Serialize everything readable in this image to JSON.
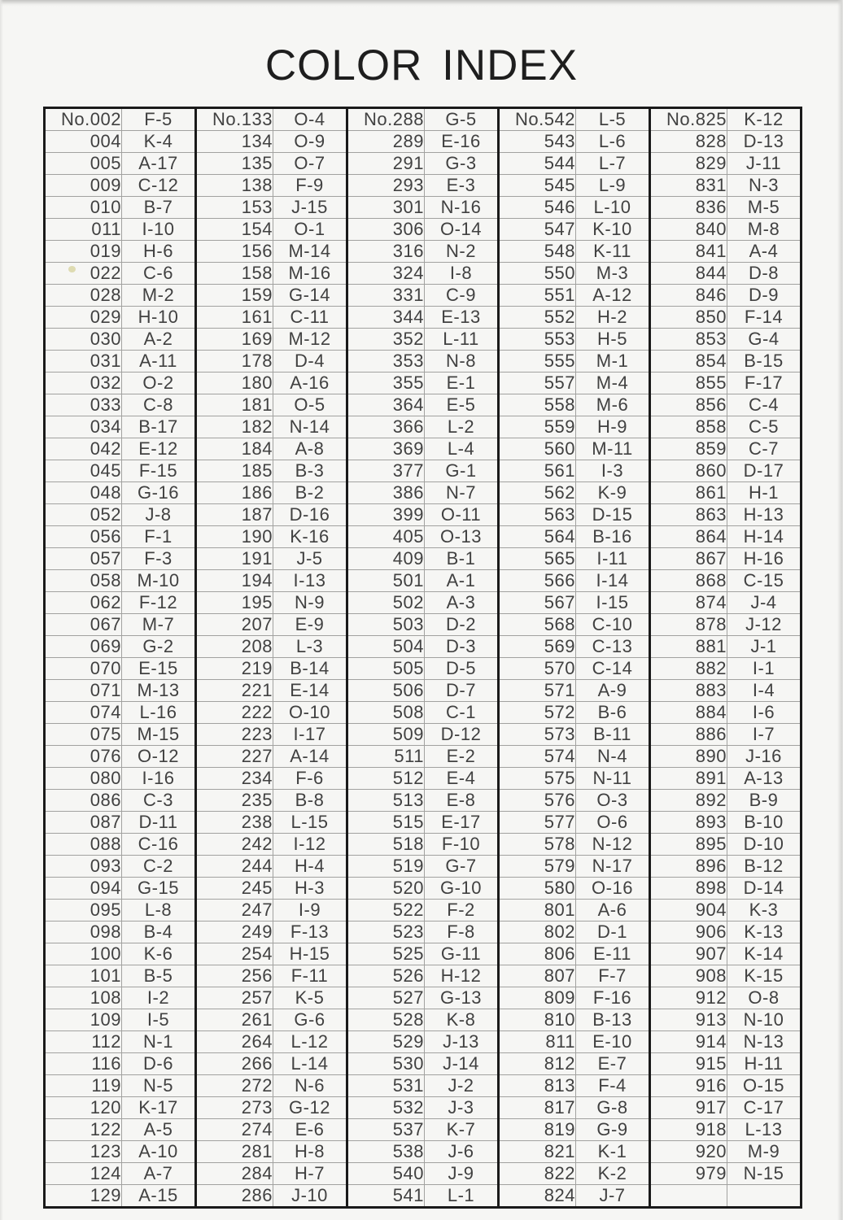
{
  "title": "COLOR INDEX",
  "table": {
    "groups": [
      {
        "rows": [
          [
            "No.002",
            "F-5"
          ],
          [
            "004",
            "K-4"
          ],
          [
            "005",
            "A-17"
          ],
          [
            "009",
            "C-12"
          ],
          [
            "010",
            "B-7"
          ],
          [
            "011",
            "I-10"
          ],
          [
            "019",
            "H-6"
          ],
          [
            "022",
            "C-6"
          ],
          [
            "028",
            "M-2"
          ],
          [
            "029",
            "H-10"
          ],
          [
            "030",
            "A-2"
          ],
          [
            "031",
            "A-11"
          ],
          [
            "032",
            "O-2"
          ],
          [
            "033",
            "C-8"
          ],
          [
            "034",
            "B-17"
          ],
          [
            "042",
            "E-12"
          ],
          [
            "045",
            "F-15"
          ],
          [
            "048",
            "G-16"
          ],
          [
            "052",
            "J-8"
          ],
          [
            "056",
            "F-1"
          ],
          [
            "057",
            "F-3"
          ],
          [
            "058",
            "M-10"
          ],
          [
            "062",
            "F-12"
          ],
          [
            "067",
            "M-7"
          ],
          [
            "069",
            "G-2"
          ],
          [
            "070",
            "E-15"
          ],
          [
            "071",
            "M-13"
          ],
          [
            "074",
            "L-16"
          ],
          [
            "075",
            "M-15"
          ],
          [
            "076",
            "O-12"
          ],
          [
            "080",
            "I-16"
          ],
          [
            "086",
            "C-3"
          ],
          [
            "087",
            "D-11"
          ],
          [
            "088",
            "C-16"
          ],
          [
            "093",
            "C-2"
          ],
          [
            "094",
            "G-15"
          ],
          [
            "095",
            "L-8"
          ],
          [
            "098",
            "B-4"
          ],
          [
            "100",
            "K-6"
          ],
          [
            "101",
            "B-5"
          ],
          [
            "108",
            "I-2"
          ],
          [
            "109",
            "I-5"
          ],
          [
            "112",
            "N-1"
          ],
          [
            "116",
            "D-6"
          ],
          [
            "119",
            "N-5"
          ],
          [
            "120",
            "K-17"
          ],
          [
            "122",
            "A-5"
          ],
          [
            "123",
            "A-10"
          ],
          [
            "124",
            "A-7"
          ],
          [
            "129",
            "A-15"
          ]
        ]
      },
      {
        "rows": [
          [
            "No.133",
            "O-4"
          ],
          [
            "134",
            "O-9"
          ],
          [
            "135",
            "O-7"
          ],
          [
            "138",
            "F-9"
          ],
          [
            "153",
            "J-15"
          ],
          [
            "154",
            "O-1"
          ],
          [
            "156",
            "M-14"
          ],
          [
            "158",
            "M-16"
          ],
          [
            "159",
            "G-14"
          ],
          [
            "161",
            "C-11"
          ],
          [
            "169",
            "M-12"
          ],
          [
            "178",
            "D-4"
          ],
          [
            "180",
            "A-16"
          ],
          [
            "181",
            "O-5"
          ],
          [
            "182",
            "N-14"
          ],
          [
            "184",
            "A-8"
          ],
          [
            "185",
            "B-3"
          ],
          [
            "186",
            "B-2"
          ],
          [
            "187",
            "D-16"
          ],
          [
            "190",
            "K-16"
          ],
          [
            "191",
            "J-5"
          ],
          [
            "194",
            "I-13"
          ],
          [
            "195",
            "N-9"
          ],
          [
            "207",
            "E-9"
          ],
          [
            "208",
            "L-3"
          ],
          [
            "219",
            "B-14"
          ],
          [
            "221",
            "E-14"
          ],
          [
            "222",
            "O-10"
          ],
          [
            "223",
            "I-17"
          ],
          [
            "227",
            "A-14"
          ],
          [
            "234",
            "F-6"
          ],
          [
            "235",
            "B-8"
          ],
          [
            "238",
            "L-15"
          ],
          [
            "242",
            "I-12"
          ],
          [
            "244",
            "H-4"
          ],
          [
            "245",
            "H-3"
          ],
          [
            "247",
            "I-9"
          ],
          [
            "249",
            "F-13"
          ],
          [
            "254",
            "H-15"
          ],
          [
            "256",
            "F-11"
          ],
          [
            "257",
            "K-5"
          ],
          [
            "261",
            "G-6"
          ],
          [
            "264",
            "L-12"
          ],
          [
            "266",
            "L-14"
          ],
          [
            "272",
            "N-6"
          ],
          [
            "273",
            "G-12"
          ],
          [
            "274",
            "E-6"
          ],
          [
            "281",
            "H-8"
          ],
          [
            "284",
            "H-7"
          ],
          [
            "286",
            "J-10"
          ]
        ]
      },
      {
        "rows": [
          [
            "No.288",
            "G-5"
          ],
          [
            "289",
            "E-16"
          ],
          [
            "291",
            "G-3"
          ],
          [
            "293",
            "E-3"
          ],
          [
            "301",
            "N-16"
          ],
          [
            "306",
            "O-14"
          ],
          [
            "316",
            "N-2"
          ],
          [
            "324",
            "I-8"
          ],
          [
            "331",
            "C-9"
          ],
          [
            "344",
            "E-13"
          ],
          [
            "352",
            "L-11"
          ],
          [
            "353",
            "N-8"
          ],
          [
            "355",
            "E-1"
          ],
          [
            "364",
            "E-5"
          ],
          [
            "366",
            "L-2"
          ],
          [
            "369",
            "L-4"
          ],
          [
            "377",
            "G-1"
          ],
          [
            "386",
            "N-7"
          ],
          [
            "399",
            "O-11"
          ],
          [
            "405",
            "O-13"
          ],
          [
            "409",
            "B-1"
          ],
          [
            "501",
            "A-1"
          ],
          [
            "502",
            "A-3"
          ],
          [
            "503",
            "D-2"
          ],
          [
            "504",
            "D-3"
          ],
          [
            "505",
            "D-5"
          ],
          [
            "506",
            "D-7"
          ],
          [
            "508",
            "C-1"
          ],
          [
            "509",
            "D-12"
          ],
          [
            "511",
            "E-2"
          ],
          [
            "512",
            "E-4"
          ],
          [
            "513",
            "E-8"
          ],
          [
            "515",
            "E-17"
          ],
          [
            "518",
            "F-10"
          ],
          [
            "519",
            "G-7"
          ],
          [
            "520",
            "G-10"
          ],
          [
            "522",
            "F-2"
          ],
          [
            "523",
            "F-8"
          ],
          [
            "525",
            "G-11"
          ],
          [
            "526",
            "H-12"
          ],
          [
            "527",
            "G-13"
          ],
          [
            "528",
            "K-8"
          ],
          [
            "529",
            "J-13"
          ],
          [
            "530",
            "J-14"
          ],
          [
            "531",
            "J-2"
          ],
          [
            "532",
            "J-3"
          ],
          [
            "537",
            "K-7"
          ],
          [
            "538",
            "J-6"
          ],
          [
            "540",
            "J-9"
          ],
          [
            "541",
            "L-1"
          ]
        ]
      },
      {
        "rows": [
          [
            "No.542",
            "L-5"
          ],
          [
            "543",
            "L-6"
          ],
          [
            "544",
            "L-7"
          ],
          [
            "545",
            "L-9"
          ],
          [
            "546",
            "L-10"
          ],
          [
            "547",
            "K-10"
          ],
          [
            "548",
            "K-11"
          ],
          [
            "550",
            "M-3"
          ],
          [
            "551",
            "A-12"
          ],
          [
            "552",
            "H-2"
          ],
          [
            "553",
            "H-5"
          ],
          [
            "555",
            "M-1"
          ],
          [
            "557",
            "M-4"
          ],
          [
            "558",
            "M-6"
          ],
          [
            "559",
            "H-9"
          ],
          [
            "560",
            "M-11"
          ],
          [
            "561",
            "I-3"
          ],
          [
            "562",
            "K-9"
          ],
          [
            "563",
            "D-15"
          ],
          [
            "564",
            "B-16"
          ],
          [
            "565",
            "I-11"
          ],
          [
            "566",
            "I-14"
          ],
          [
            "567",
            "I-15"
          ],
          [
            "568",
            "C-10"
          ],
          [
            "569",
            "C-13"
          ],
          [
            "570",
            "C-14"
          ],
          [
            "571",
            "A-9"
          ],
          [
            "572",
            "B-6"
          ],
          [
            "573",
            "B-11"
          ],
          [
            "574",
            "N-4"
          ],
          [
            "575",
            "N-11"
          ],
          [
            "576",
            "O-3"
          ],
          [
            "577",
            "O-6"
          ],
          [
            "578",
            "N-12"
          ],
          [
            "579",
            "N-17"
          ],
          [
            "580",
            "O-16"
          ],
          [
            "801",
            "A-6"
          ],
          [
            "802",
            "D-1"
          ],
          [
            "806",
            "E-11"
          ],
          [
            "807",
            "F-7"
          ],
          [
            "809",
            "F-16"
          ],
          [
            "810",
            "B-13"
          ],
          [
            "811",
            "E-10"
          ],
          [
            "812",
            "E-7"
          ],
          [
            "813",
            "F-4"
          ],
          [
            "817",
            "G-8"
          ],
          [
            "819",
            "G-9"
          ],
          [
            "821",
            "K-1"
          ],
          [
            "822",
            "K-2"
          ],
          [
            "824",
            "J-7"
          ]
        ]
      },
      {
        "rows": [
          [
            "No.825",
            "K-12"
          ],
          [
            "828",
            "D-13"
          ],
          [
            "829",
            "J-11"
          ],
          [
            "831",
            "N-3"
          ],
          [
            "836",
            "M-5"
          ],
          [
            "840",
            "M-8"
          ],
          [
            "841",
            "A-4"
          ],
          [
            "844",
            "D-8"
          ],
          [
            "846",
            "D-9"
          ],
          [
            "850",
            "F-14"
          ],
          [
            "853",
            "G-4"
          ],
          [
            "854",
            "B-15"
          ],
          [
            "855",
            "F-17"
          ],
          [
            "856",
            "C-4"
          ],
          [
            "858",
            "C-5"
          ],
          [
            "859",
            "C-7"
          ],
          [
            "860",
            "D-17"
          ],
          [
            "861",
            "H-1"
          ],
          [
            "863",
            "H-13"
          ],
          [
            "864",
            "H-14"
          ],
          [
            "867",
            "H-16"
          ],
          [
            "868",
            "C-15"
          ],
          [
            "874",
            "J-4"
          ],
          [
            "878",
            "J-12"
          ],
          [
            "881",
            "J-1"
          ],
          [
            "882",
            "I-1"
          ],
          [
            "883",
            "I-4"
          ],
          [
            "884",
            "I-6"
          ],
          [
            "886",
            "I-7"
          ],
          [
            "890",
            "J-16"
          ],
          [
            "891",
            "A-13"
          ],
          [
            "892",
            "B-9"
          ],
          [
            "893",
            "B-10"
          ],
          [
            "895",
            "D-10"
          ],
          [
            "896",
            "B-12"
          ],
          [
            "898",
            "D-14"
          ],
          [
            "904",
            "K-3"
          ],
          [
            "906",
            "K-13"
          ],
          [
            "907",
            "K-14"
          ],
          [
            "908",
            "K-15"
          ],
          [
            "912",
            "O-8"
          ],
          [
            "913",
            "N-10"
          ],
          [
            "914",
            "N-13"
          ],
          [
            "915",
            "H-11"
          ],
          [
            "916",
            "O-15"
          ],
          [
            "917",
            "C-17"
          ],
          [
            "918",
            "L-13"
          ],
          [
            "920",
            "M-9"
          ],
          [
            "979",
            "N-15"
          ],
          [
            "",
            ""
          ]
        ]
      }
    ]
  }
}
